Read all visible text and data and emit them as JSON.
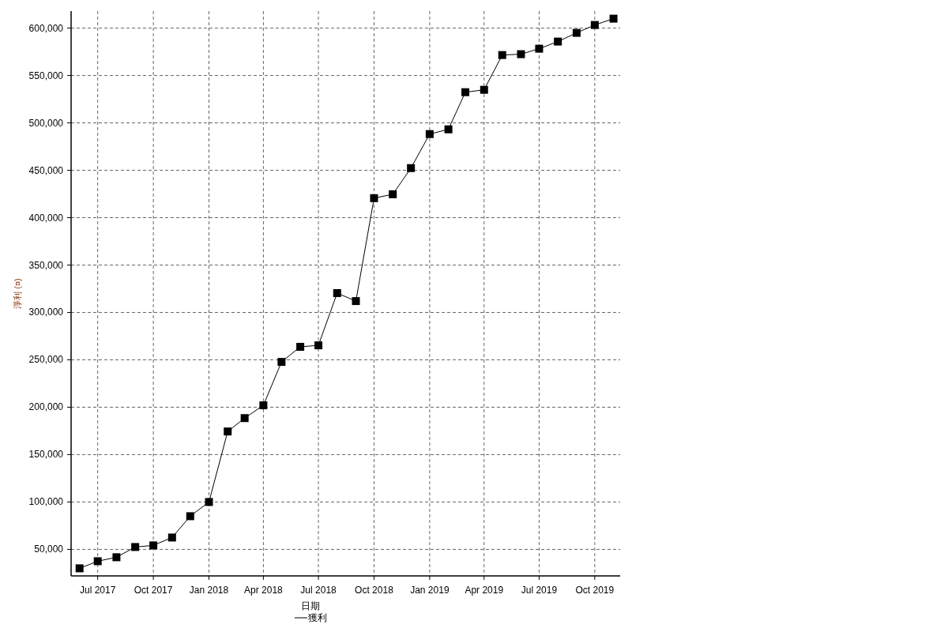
{
  "chart_data": {
    "type": "line",
    "xlabel": "日期",
    "ylabel": "淨利 (¤)",
    "x": [
      "2017-06",
      "2017-07",
      "2017-08",
      "2017-09",
      "2017-10",
      "2017-11",
      "2017-12",
      "2018-01",
      "2018-02",
      "2018-03",
      "2018-04",
      "2018-05",
      "2018-06",
      "2018-07",
      "2018-08",
      "2018-09",
      "2018-10",
      "2018-11",
      "2018-12",
      "2019-01",
      "2019-02",
      "2019-03",
      "2019-04",
      "2019-05",
      "2019-06",
      "2019-07",
      "2019-08",
      "2019-09",
      "2019-10",
      "2019-11"
    ],
    "series": [
      {
        "name": "獲利",
        "color": "#000000",
        "values": [
          30000,
          37500,
          41700,
          52500,
          54200,
          62500,
          85000,
          100000,
          174400,
          188500,
          202000,
          247800,
          263700,
          265300,
          320400,
          312000,
          420600,
          424700,
          452300,
          488200,
          493200,
          532400,
          534900,
          571600,
          572500,
          578300,
          585800,
          595000,
          603300,
          610000
        ]
      }
    ],
    "xlim": [
      "2017-05-18",
      "2019-11-12"
    ],
    "xticks": [
      {
        "value": "2017-07",
        "label": "Jul 2017"
      },
      {
        "value": "2017-10",
        "label": "Oct 2017"
      },
      {
        "value": "2018-01",
        "label": "Jan 2018"
      },
      {
        "value": "2018-04",
        "label": "Apr 2018"
      },
      {
        "value": "2018-07",
        "label": "Jul 2018"
      },
      {
        "value": "2018-10",
        "label": "Oct 2018"
      },
      {
        "value": "2019-01",
        "label": "Jan 2019"
      },
      {
        "value": "2019-04",
        "label": "Apr 2019"
      },
      {
        "value": "2019-07",
        "label": "Jul 2019"
      },
      {
        "value": "2019-10",
        "label": "Oct 2019"
      }
    ],
    "ylim": [
      22000,
      618000
    ],
    "yticks": [
      {
        "value": 50000,
        "label": "50,000"
      },
      {
        "value": 100000,
        "label": "100,000"
      },
      {
        "value": 150000,
        "label": "150,000"
      },
      {
        "value": 200000,
        "label": "200,000"
      },
      {
        "value": 250000,
        "label": "250,000"
      },
      {
        "value": 300000,
        "label": "300,000"
      },
      {
        "value": 350000,
        "label": "350,000"
      },
      {
        "value": 400000,
        "label": "400,000"
      },
      {
        "value": 450000,
        "label": "450,000"
      },
      {
        "value": 500000,
        "label": "500,000"
      },
      {
        "value": 550000,
        "label": "550,000"
      },
      {
        "value": 600000,
        "label": "600,000"
      }
    ],
    "grid": true,
    "legend": "bottom",
    "marker": "square",
    "line_style": "solid"
  }
}
